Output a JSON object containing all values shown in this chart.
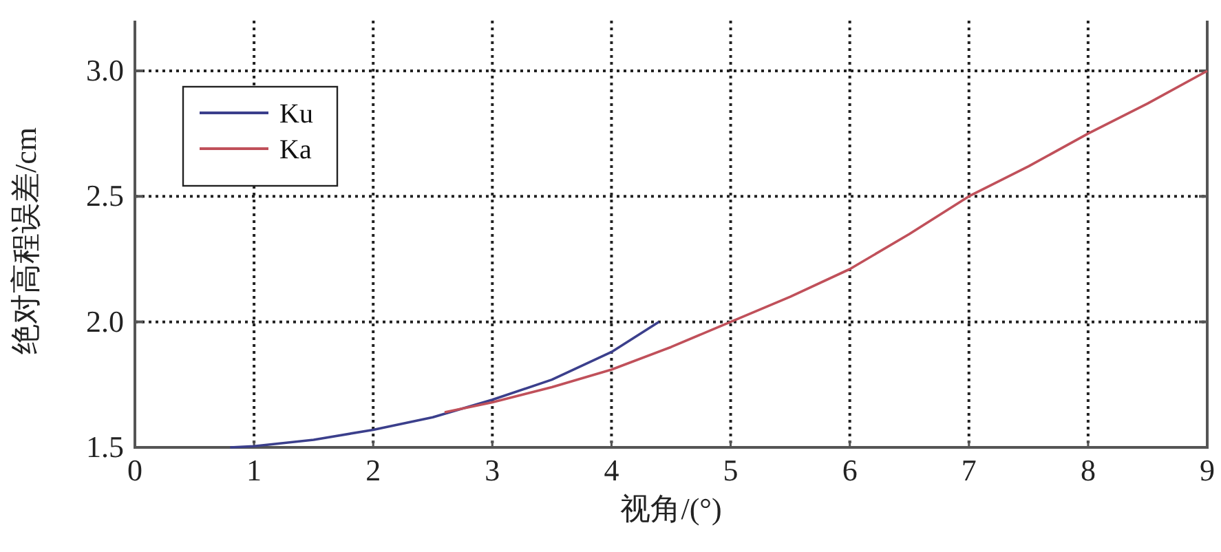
{
  "chart_data": {
    "type": "line",
    "xlabel": "视角/(°)",
    "ylabel": "绝对高程误差/cm",
    "xlim": [
      0,
      9
    ],
    "ylim": [
      1.5,
      3.2
    ],
    "xticks": [
      0,
      1,
      2,
      3,
      4,
      5,
      6,
      7,
      8,
      9
    ],
    "yticks": [
      1.5,
      {
        "value": 2,
        "label": "2.0"
      },
      2.5,
      {
        "value": 3,
        "label": "3.0"
      }
    ],
    "grid": true,
    "legend": "top left",
    "line_style": "solid",
    "marker": "none",
    "series": [
      {
        "name": "Ku",
        "color": "#3b3f8c",
        "x": [
          0.8,
          1,
          1.5,
          2,
          2.5,
          3,
          3.5,
          4,
          4.2,
          4.4
        ],
        "values": [
          1.5,
          1.505,
          1.53,
          1.57,
          1.62,
          1.69,
          1.77,
          1.88,
          1.94,
          2.0
        ]
      },
      {
        "name": "Ka",
        "color": "#c0505a",
        "x": [
          2.6,
          3,
          3.5,
          4,
          4.5,
          5,
          5.5,
          6,
          6.5,
          7,
          7.5,
          8,
          8.5,
          9
        ],
        "values": [
          1.64,
          1.68,
          1.74,
          1.81,
          1.9,
          2.0,
          2.1,
          2.21,
          2.35,
          2.5,
          2.62,
          2.75,
          2.87,
          3.0
        ]
      }
    ]
  }
}
